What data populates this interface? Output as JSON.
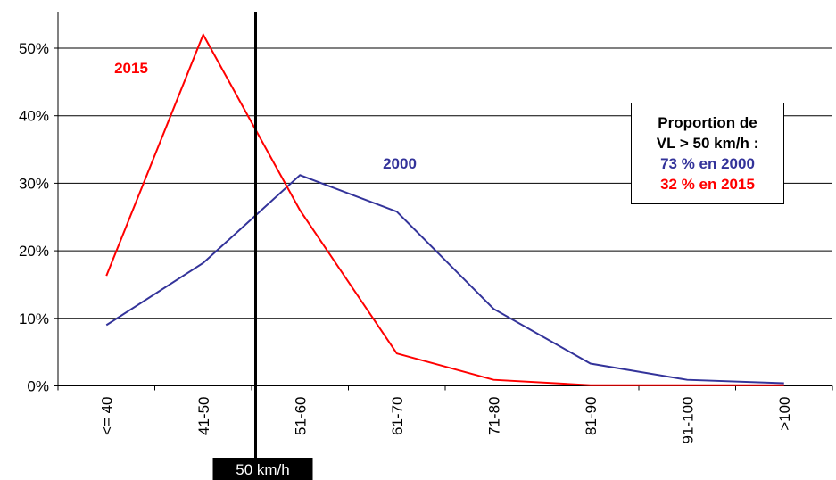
{
  "chart_data": {
    "type": "line",
    "categories": [
      "<= 40",
      "41-50",
      "51-60",
      "61-70",
      "71-80",
      "81-90",
      "91-100",
      ">100"
    ],
    "series": [
      {
        "name": "2000",
        "color": "#33339a",
        "values": [
          9,
          18.2,
          31.2,
          25.8,
          11.4,
          3.3,
          0.9,
          0.4
        ]
      },
      {
        "name": "2015",
        "color": "#ff0000",
        "values": [
          16.3,
          52,
          26,
          4.8,
          0.9,
          0.1,
          0.1,
          0.1
        ]
      }
    ],
    "yticks": [
      "0%",
      "10%",
      "20%",
      "30%",
      "40%",
      "50%"
    ],
    "ylim": [
      0,
      55
    ],
    "grid": true,
    "threshold_marker": {
      "label": "50 km/h"
    },
    "info_box": {
      "line1": "Proportion de",
      "line2": "VL > 50 km/h :",
      "line3": "73 % en 2000",
      "line4": "32 % en 2015",
      "color_line3": "#33339a",
      "color_line4": "#ff0000"
    },
    "title": "",
    "xlabel": "",
    "ylabel": ""
  }
}
